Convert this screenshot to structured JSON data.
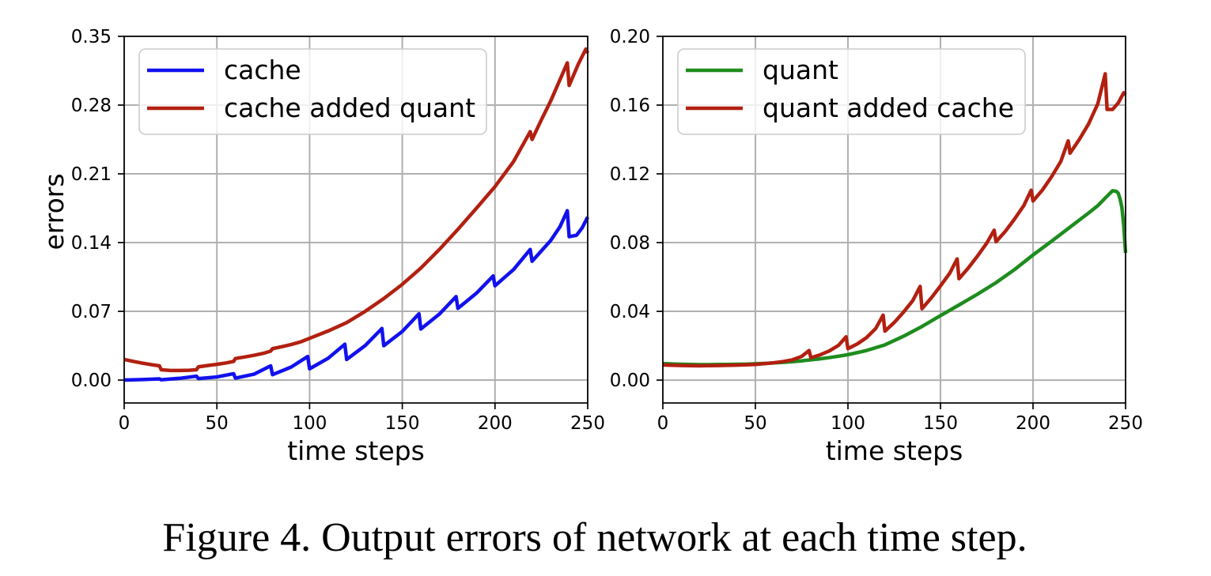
{
  "caption": "Figure 4. Output errors of network at each time step.",
  "chart_data": [
    {
      "type": "line",
      "xlabel": "time steps",
      "ylabel": "errors",
      "xlim": [
        0,
        250
      ],
      "ylim": [
        -0.0233,
        0.35
      ],
      "xticks": [
        0,
        50,
        100,
        150,
        200,
        250
      ],
      "xtick_labels": [
        "0",
        "50",
        "100",
        "150",
        "200",
        "250"
      ],
      "yticks": [
        0,
        0.07,
        0.14,
        0.21,
        0.28,
        0.35
      ],
      "ytick_labels": [
        "0.00",
        "0.07",
        "0.14",
        "0.21",
        "0.28",
        "0.35"
      ],
      "grid": true,
      "legend": "top-left",
      "series": [
        {
          "name": "cache",
          "color": "#1111ee",
          "x": [
            0,
            10,
            19,
            20,
            30,
            39,
            40,
            50,
            59,
            60,
            70,
            79,
            80,
            90,
            99,
            100,
            110,
            119,
            120,
            130,
            139,
            140,
            150,
            159,
            160,
            170,
            179,
            180,
            190,
            199,
            200,
            210,
            219,
            220,
            230,
            235,
            239,
            240,
            244,
            247,
            250
          ],
          "y": [
            0.0,
            0.0005,
            0.0012,
            0.0003,
            0.0018,
            0.004,
            0.0015,
            0.0032,
            0.0065,
            0.002,
            0.006,
            0.0145,
            0.0055,
            0.0132,
            0.024,
            0.0115,
            0.0222,
            0.0365,
            0.021,
            0.0352,
            0.0525,
            0.035,
            0.0495,
            0.0675,
            0.052,
            0.0672,
            0.085,
            0.073,
            0.0885,
            0.106,
            0.096,
            0.1125,
            0.133,
            0.121,
            0.142,
            0.156,
            0.1725,
            0.146,
            0.1475,
            0.155,
            0.166
          ]
        },
        {
          "name": "cache added quant",
          "color": "#b22010",
          "x": [
            0,
            5,
            10,
            15,
            19,
            20,
            25,
            30,
            35,
            39,
            40,
            45,
            50,
            55,
            59,
            60,
            65,
            70,
            75,
            79,
            80,
            85,
            90,
            95,
            100,
            110,
            120,
            130,
            140,
            150,
            160,
            170,
            180,
            190,
            200,
            210,
            219,
            220,
            225,
            230,
            239,
            240,
            245,
            249,
            250
          ],
          "y": [
            0.021,
            0.019,
            0.0172,
            0.0156,
            0.0145,
            0.0105,
            0.0098,
            0.0098,
            0.01,
            0.0105,
            0.0135,
            0.0148,
            0.016,
            0.0175,
            0.019,
            0.022,
            0.0235,
            0.0252,
            0.0272,
            0.0295,
            0.032,
            0.034,
            0.0362,
            0.0388,
            0.0425,
            0.05,
            0.0585,
            0.07,
            0.083,
            0.0975,
            0.114,
            0.133,
            0.1535,
            0.175,
            0.197,
            0.2225,
            0.253,
            0.245,
            0.265,
            0.284,
            0.323,
            0.3,
            0.322,
            0.337,
            0.333
          ]
        }
      ]
    },
    {
      "type": "line",
      "xlabel": "time steps",
      "ylabel": "",
      "xlim": [
        0,
        250
      ],
      "ylim": [
        -0.0133,
        0.2
      ],
      "xticks": [
        0,
        50,
        100,
        150,
        200,
        250
      ],
      "xtick_labels": [
        "0",
        "50",
        "100",
        "150",
        "200",
        "250"
      ],
      "yticks": [
        0,
        0.04,
        0.08,
        0.12,
        0.16,
        0.2
      ],
      "ytick_labels": [
        "0.00",
        "0.04",
        "0.08",
        "0.12",
        "0.16",
        "0.20"
      ],
      "grid": true,
      "legend": "top-left",
      "series": [
        {
          "name": "quant",
          "color": "#1e8c1e",
          "x": [
            0,
            5,
            10,
            15,
            20,
            25,
            30,
            35,
            40,
            45,
            50,
            55,
            60,
            65,
            70,
            75,
            80,
            85,
            90,
            95,
            100,
            110,
            120,
            130,
            140,
            150,
            160,
            170,
            180,
            190,
            200,
            210,
            220,
            230,
            235,
            240,
            243,
            245,
            246,
            247,
            248,
            249,
            250
          ],
          "y": [
            0.0096,
            0.0094,
            0.0092,
            0.0091,
            0.009,
            0.009,
            0.0091,
            0.0091,
            0.0092,
            0.0093,
            0.0095,
            0.0097,
            0.01,
            0.0103,
            0.0107,
            0.0112,
            0.0118,
            0.0124,
            0.0131,
            0.0139,
            0.0148,
            0.0172,
            0.0205,
            0.0255,
            0.0312,
            0.0375,
            0.0437,
            0.05,
            0.0567,
            0.0643,
            0.0728,
            0.0808,
            0.089,
            0.0972,
            0.1015,
            0.107,
            0.1102,
            0.1098,
            0.1088,
            0.1055,
            0.1005,
            0.09,
            0.074
          ]
        },
        {
          "name": "quant added cache",
          "color": "#b22010",
          "x": [
            0,
            10,
            20,
            30,
            40,
            50,
            60,
            65,
            70,
            75,
            79,
            80,
            85,
            90,
            95,
            99,
            100,
            105,
            110,
            115,
            119,
            120,
            125,
            130,
            135,
            139,
            140,
            145,
            150,
            155,
            159,
            160,
            165,
            170,
            175,
            179,
            180,
            185,
            190,
            195,
            199,
            200,
            205,
            210,
            215,
            219,
            220,
            225,
            230,
            235,
            239,
            240,
            243,
            246,
            249,
            250
          ],
          "y": [
            0.0088,
            0.0085,
            0.0083,
            0.0085,
            0.0087,
            0.0091,
            0.0101,
            0.0108,
            0.0118,
            0.0138,
            0.0172,
            0.013,
            0.0147,
            0.017,
            0.0203,
            0.0252,
            0.0183,
            0.021,
            0.0247,
            0.03,
            0.0378,
            0.0285,
            0.0335,
            0.0395,
            0.0462,
            0.0545,
            0.0415,
            0.0478,
            0.0548,
            0.0622,
            0.0705,
            0.059,
            0.0652,
            0.0722,
            0.0797,
            0.0872,
            0.0805,
            0.0865,
            0.0937,
            0.1015,
            0.1105,
            0.1042,
            0.1105,
            0.1183,
            0.1272,
            0.1392,
            0.132,
            0.14,
            0.149,
            0.1608,
            0.1782,
            0.1575,
            0.1575,
            0.1612,
            0.1672,
            0.166
          ]
        }
      ]
    }
  ]
}
